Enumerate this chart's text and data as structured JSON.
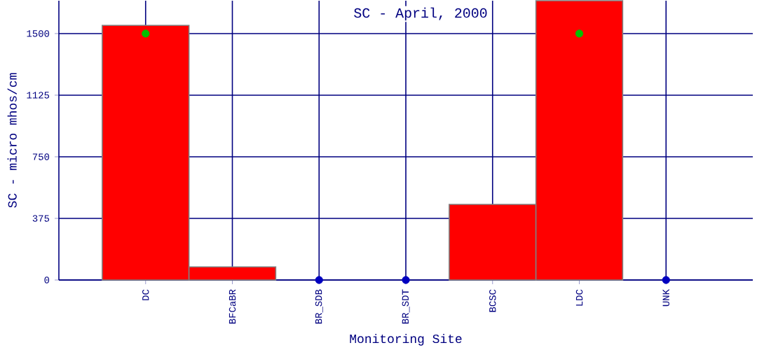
{
  "chart_data": {
    "type": "bar",
    "title": "SC - April, 2000",
    "xlabel": "Monitoring Site",
    "ylabel": "SC - micro mhos/cm",
    "categories": [
      "DC",
      "BFCaBR",
      "BR_SDB",
      "BR_SDT",
      "BCSC",
      "LDC",
      "UNK"
    ],
    "series": [
      {
        "color": "#ff0000",
        "values": [
          1550,
          80,
          null,
          null,
          460,
          1700,
          null
        ]
      },
      {
        "type": "scatter",
        "color": "#00c000",
        "values": [
          1500,
          null,
          null,
          null,
          null,
          1500,
          null
        ]
      },
      {
        "type": "scatter",
        "color": "#0000c0",
        "values": [
          null,
          null,
          0,
          0,
          null,
          null,
          0
        ]
      }
    ],
    "ylim": [
      0,
      1700
    ],
    "yticks": [
      0,
      375,
      750,
      1125,
      1500
    ],
    "grid": true
  }
}
